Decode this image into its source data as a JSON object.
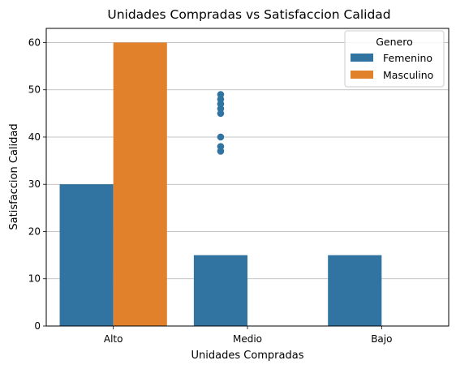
{
  "chart_data": {
    "type": "bar",
    "title": "Unidades Compradas vs Satisfaccion Calidad",
    "xlabel": "Unidades Compradas",
    "ylabel": "Satisfaccion Calidad",
    "categories": [
      "Alto",
      "Medio",
      "Bajo"
    ],
    "ylim": [
      0,
      63
    ],
    "yticks": [
      0,
      10,
      20,
      30,
      40,
      50,
      60
    ],
    "grid": "y",
    "legend": {
      "title": "Genero",
      "placement": "top-right"
    },
    "series": [
      {
        "name": "Femenino",
        "color": "#3274a1",
        "values": [
          30,
          15,
          15
        ]
      },
      {
        "name": "Masculino",
        "color": "#e1812c",
        "values": [
          60,
          0,
          0
        ]
      }
    ],
    "outliers": [
      {
        "category": "Medio",
        "series": "Femenino",
        "color": "#3274a1",
        "values": [
          49,
          48,
          47,
          46,
          45,
          40,
          38,
          37
        ]
      }
    ]
  }
}
